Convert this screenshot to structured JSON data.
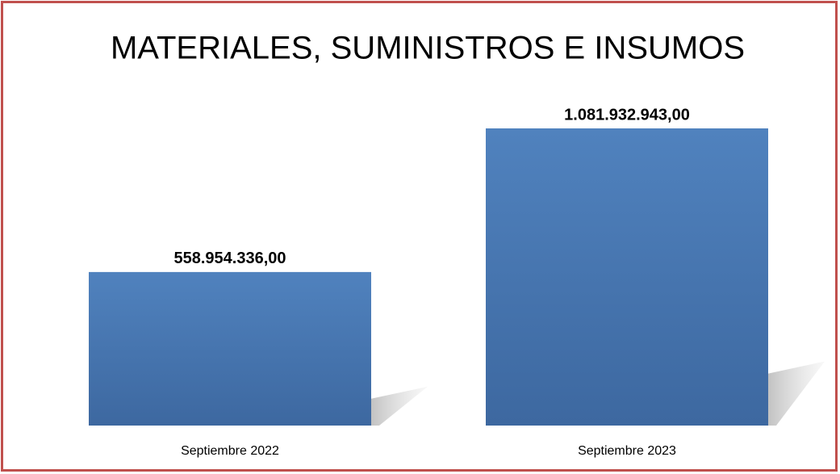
{
  "chart_data": {
    "type": "bar",
    "title": "MATERIALES, SUMINISTROS E INSUMOS",
    "categories": [
      "Septiembre 2022",
      "Septiembre 2023"
    ],
    "values": [
      558954336,
      1081932943
    ],
    "value_labels": [
      "558.954.336,00",
      "1.081.932.943,00"
    ],
    "color": "#4f81bd"
  }
}
